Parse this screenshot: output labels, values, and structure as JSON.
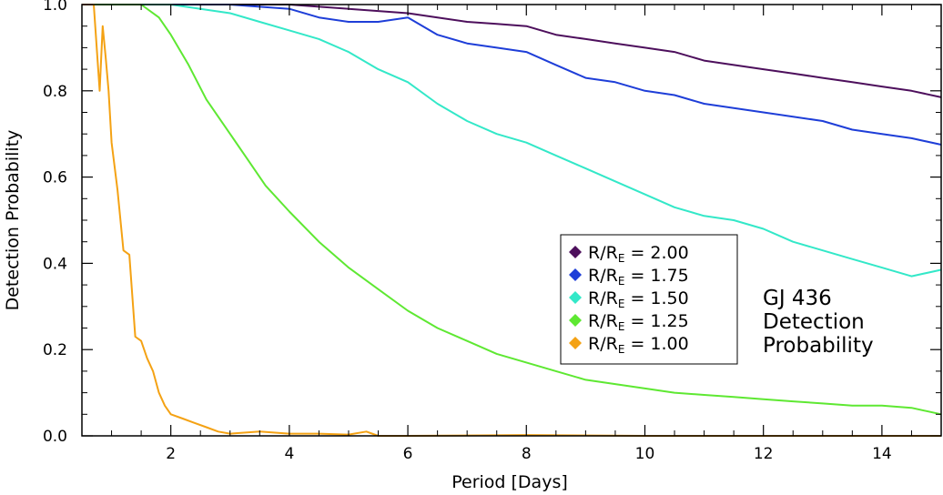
{
  "chart_data": {
    "type": "line",
    "title": "",
    "annotation": [
      "GJ 436",
      "Detection",
      "Probability"
    ],
    "xlabel": "Period [Days]",
    "ylabel": "Detection Probability",
    "xlim": [
      0.5,
      15.0
    ],
    "ylim": [
      0.0,
      1.0
    ],
    "xticks": [
      2,
      4,
      6,
      8,
      10,
      12,
      14
    ],
    "yticks": [
      0.0,
      0.2,
      0.4,
      0.6,
      0.8,
      1.0
    ],
    "ytick_labels": [
      "0.0",
      "0.2",
      "0.4",
      "0.6",
      "0.8",
      "1.0"
    ],
    "legend_position": "center-right",
    "legend_prefix": "R/R",
    "legend_subscript": "E",
    "series": [
      {
        "name": "R/R_E = 2.00",
        "value_label": "2.00",
        "color": "#4d0f5c",
        "x": [
          0.5,
          2.0,
          3.0,
          4.0,
          4.5,
          5.0,
          5.5,
          6.0,
          6.5,
          7.0,
          7.5,
          8.0,
          8.5,
          9.0,
          9.5,
          10.0,
          10.5,
          11.0,
          11.5,
          12.0,
          12.5,
          13.0,
          13.5,
          14.0,
          14.5,
          15.0
        ],
        "y": [
          1.0,
          1.0,
          1.0,
          1.0,
          0.995,
          0.99,
          0.985,
          0.98,
          0.97,
          0.96,
          0.955,
          0.95,
          0.93,
          0.92,
          0.91,
          0.9,
          0.89,
          0.87,
          0.86,
          0.85,
          0.84,
          0.83,
          0.82,
          0.81,
          0.8,
          0.785
        ]
      },
      {
        "name": "R/R_E = 1.75",
        "value_label": "1.75",
        "color": "#1e3ed8",
        "x": [
          0.5,
          2.0,
          3.0,
          4.0,
          4.5,
          5.0,
          5.5,
          6.0,
          6.5,
          7.0,
          7.5,
          8.0,
          8.5,
          9.0,
          9.5,
          10.0,
          10.5,
          11.0,
          11.5,
          12.0,
          12.5,
          13.0,
          13.5,
          14.0,
          14.5,
          15.0
        ],
        "y": [
          1.0,
          1.0,
          1.0,
          0.99,
          0.97,
          0.96,
          0.96,
          0.97,
          0.93,
          0.91,
          0.9,
          0.89,
          0.86,
          0.83,
          0.82,
          0.8,
          0.79,
          0.77,
          0.76,
          0.75,
          0.74,
          0.73,
          0.71,
          0.7,
          0.69,
          0.675
        ]
      },
      {
        "name": "R/R_E = 1.50",
        "value_label": "1.50",
        "color": "#33e8c8",
        "x": [
          0.5,
          2.0,
          2.5,
          3.0,
          3.5,
          4.0,
          4.5,
          5.0,
          5.5,
          6.0,
          6.5,
          7.0,
          7.5,
          8.0,
          8.5,
          9.0,
          9.5,
          10.0,
          10.5,
          11.0,
          11.5,
          12.0,
          12.5,
          13.0,
          13.5,
          14.0,
          14.5,
          15.0
        ],
        "y": [
          1.0,
          1.0,
          0.99,
          0.98,
          0.96,
          0.94,
          0.92,
          0.89,
          0.85,
          0.82,
          0.77,
          0.73,
          0.7,
          0.68,
          0.65,
          0.62,
          0.59,
          0.56,
          0.53,
          0.51,
          0.5,
          0.48,
          0.45,
          0.43,
          0.41,
          0.39,
          0.37,
          0.385
        ]
      },
      {
        "name": "R/R_E = 1.25",
        "value_label": "1.25",
        "color": "#5ee832",
        "x": [
          0.5,
          1.5,
          1.8,
          2.0,
          2.3,
          2.6,
          3.0,
          3.3,
          3.6,
          4.0,
          4.5,
          5.0,
          5.5,
          6.0,
          6.5,
          7.0,
          7.5,
          8.0,
          8.5,
          9.0,
          9.5,
          10.0,
          10.5,
          11.0,
          11.5,
          12.0,
          12.5,
          13.0,
          13.5,
          14.0,
          14.5,
          15.0
        ],
        "y": [
          1.0,
          1.0,
          0.97,
          0.93,
          0.86,
          0.78,
          0.7,
          0.64,
          0.58,
          0.52,
          0.45,
          0.39,
          0.34,
          0.29,
          0.25,
          0.22,
          0.19,
          0.17,
          0.15,
          0.13,
          0.12,
          0.11,
          0.1,
          0.095,
          0.09,
          0.085,
          0.08,
          0.075,
          0.07,
          0.07,
          0.065,
          0.05
        ]
      },
      {
        "name": "R/R_E = 1.00",
        "value_label": "1.00",
        "color": "#f4a214",
        "x": [
          0.5,
          0.7,
          0.8,
          0.85,
          0.9,
          0.95,
          1.0,
          1.1,
          1.2,
          1.3,
          1.4,
          1.5,
          1.6,
          1.7,
          1.8,
          1.9,
          2.0,
          2.2,
          2.4,
          2.6,
          2.8,
          3.0,
          3.5,
          4.0,
          4.5,
          5.0,
          5.3,
          5.5,
          6.0,
          8.0,
          10.0,
          12.0,
          15.0
        ],
        "y": [
          1.0,
          1.0,
          0.8,
          0.95,
          0.88,
          0.8,
          0.68,
          0.57,
          0.43,
          0.42,
          0.23,
          0.22,
          0.18,
          0.15,
          0.1,
          0.07,
          0.05,
          0.04,
          0.03,
          0.02,
          0.01,
          0.005,
          0.01,
          0.005,
          0.005,
          0.003,
          0.01,
          0.0,
          0.0,
          0.002,
          0.0,
          0.0,
          0.0
        ]
      }
    ]
  }
}
